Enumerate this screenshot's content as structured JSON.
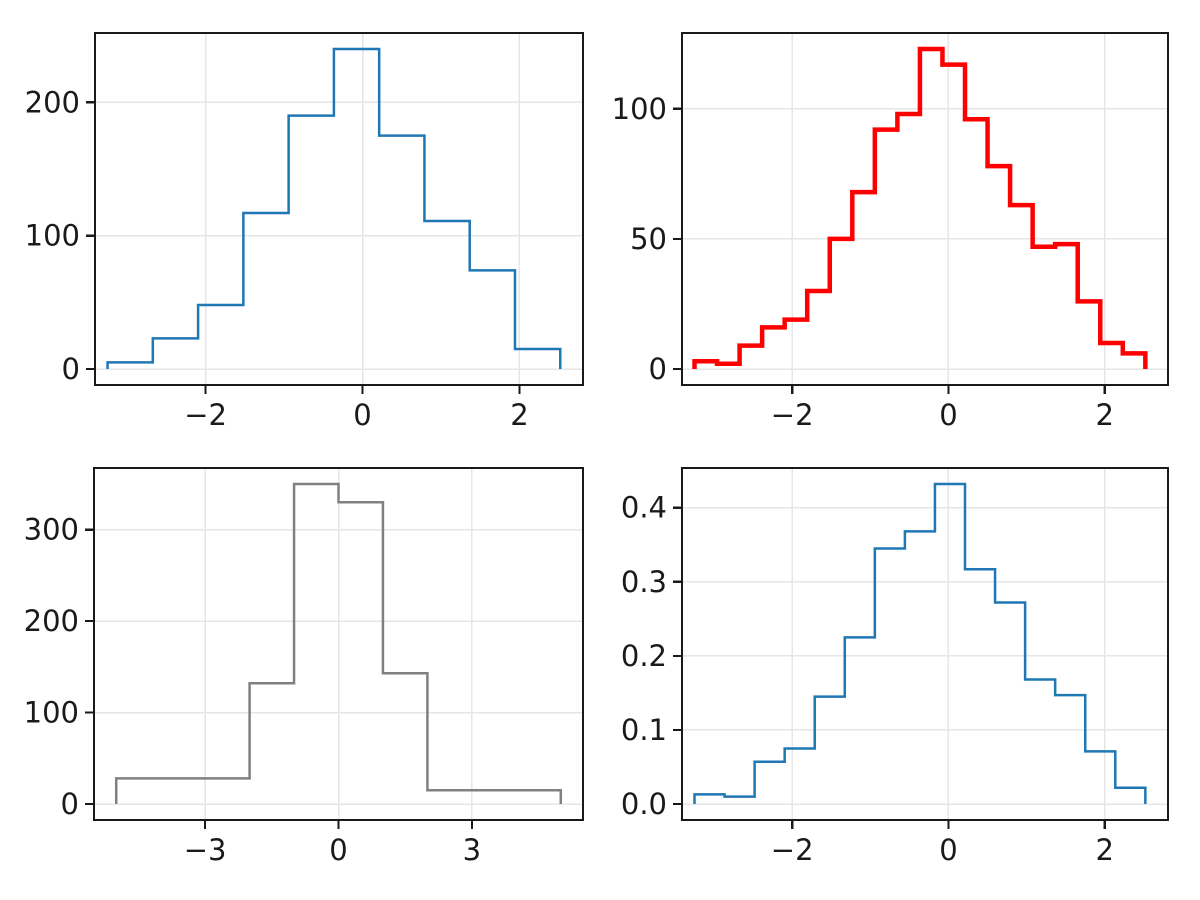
{
  "figure": {
    "background": "#ffffff",
    "grid_color": "#e6e6e6",
    "spine_color": "#1a1a1a",
    "tick_color": "#1a1a1a",
    "tick_label_color": "#1a1a1a"
  },
  "chart_data": [
    {
      "id": "top-left",
      "type": "histogram-step",
      "series_name": "hist-10-bins",
      "color": "#1f77b4",
      "line_width": 2.5,
      "grid": true,
      "bin_edges": [
        -3.25,
        -2.673,
        -2.096,
        -1.519,
        -0.942,
        -0.365,
        0.212,
        0.789,
        1.366,
        1.943,
        2.52
      ],
      "values": [
        5,
        23,
        48,
        117,
        190,
        240,
        175,
        111,
        74,
        15
      ],
      "xlim": [
        -3.41,
        2.81
      ],
      "ylim": [
        -12,
        252
      ],
      "xticks": [
        {
          "v": -2,
          "label": "−2"
        },
        {
          "v": 0,
          "label": "0"
        },
        {
          "v": 2,
          "label": "2"
        }
      ],
      "yticks": [
        {
          "v": 0,
          "label": "0"
        },
        {
          "v": 100,
          "label": "100"
        },
        {
          "v": 200,
          "label": "200"
        }
      ]
    },
    {
      "id": "top-right",
      "type": "histogram-step",
      "series_name": "hist-20-bins",
      "color": "#ff0000",
      "line_width": 4.5,
      "grid": true,
      "bin_edges": [
        -3.25,
        -2.9615,
        -2.673,
        -2.3845,
        -2.096,
        -1.8075,
        -1.519,
        -1.2305,
        -0.942,
        -0.6535,
        -0.365,
        -0.0765,
        0.212,
        0.5005,
        0.789,
        1.0775,
        1.366,
        1.6545,
        1.943,
        2.2315,
        2.52
      ],
      "values": [
        3,
        2,
        9,
        16,
        19,
        30,
        50,
        68,
        92,
        98,
        123,
        117,
        96,
        78,
        63,
        47,
        48,
        26,
        10,
        6
      ],
      "xlim": [
        -3.41,
        2.81
      ],
      "ylim": [
        -6.15,
        129.15
      ],
      "xticks": [
        {
          "v": -2,
          "label": "−2"
        },
        {
          "v": 0,
          "label": "0"
        },
        {
          "v": 2,
          "label": "2"
        }
      ],
      "yticks": [
        {
          "v": 0,
          "label": "0"
        },
        {
          "v": 50,
          "label": "50"
        },
        {
          "v": 100,
          "label": "100"
        }
      ]
    },
    {
      "id": "bottom-left",
      "type": "histogram-step",
      "series_name": "hist-custom-bins",
      "color": "#808080",
      "line_width": 2.5,
      "grid": true,
      "bin_edges": [
        -5,
        -2,
        -1,
        0,
        1,
        2,
        5
      ],
      "values": [
        28,
        132,
        350,
        330,
        143,
        15
      ],
      "xlim": [
        -5.5,
        5.5
      ],
      "ylim": [
        -17.5,
        367.5
      ],
      "xticks": [
        {
          "v": -3,
          "label": "−3"
        },
        {
          "v": 0,
          "label": "0"
        },
        {
          "v": 3,
          "label": "3"
        }
      ],
      "yticks": [
        {
          "v": 0,
          "label": "0"
        },
        {
          "v": 100,
          "label": "100"
        },
        {
          "v": 200,
          "label": "200"
        },
        {
          "v": 300,
          "label": "300"
        }
      ]
    },
    {
      "id": "bottom-right",
      "type": "histogram-step",
      "series_name": "hist-15-bins-density",
      "color": "#1f77b4",
      "line_width": 2.5,
      "grid": true,
      "bin_edges": [
        -3.25,
        -2.8653,
        -2.4807,
        -2.096,
        -1.7113,
        -1.3267,
        -0.942,
        -0.5573,
        -0.1727,
        0.212,
        0.5967,
        0.9813,
        1.366,
        1.7507,
        2.1353,
        2.52
      ],
      "values": [
        0.013,
        0.01,
        0.057,
        0.075,
        0.145,
        0.225,
        0.345,
        0.368,
        0.432,
        0.317,
        0.272,
        0.168,
        0.147,
        0.071,
        0.022
      ],
      "xlim": [
        -3.41,
        2.81
      ],
      "ylim": [
        -0.0216,
        0.4536
      ],
      "xticks": [
        {
          "v": -2,
          "label": "−2"
        },
        {
          "v": 0,
          "label": "0"
        },
        {
          "v": 2,
          "label": "2"
        }
      ],
      "yticks": [
        {
          "v": 0,
          "label": "0.0"
        },
        {
          "v": 0.1,
          "label": "0.1"
        },
        {
          "v": 0.2,
          "label": "0.2"
        },
        {
          "v": 0.3,
          "label": "0.3"
        },
        {
          "v": 0.4,
          "label": "0.4"
        }
      ]
    }
  ]
}
